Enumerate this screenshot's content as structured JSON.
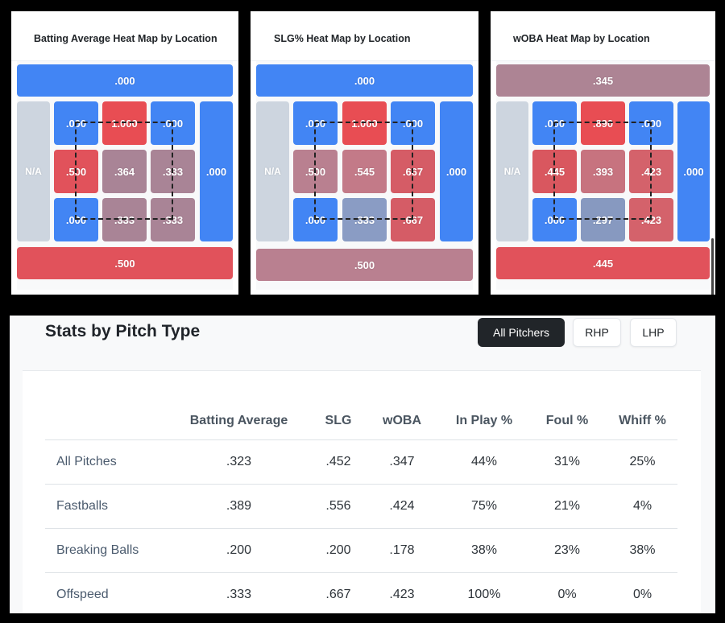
{
  "heatmaps": [
    {
      "title": "Batting Average Heat Map by Location",
      "top": ".000",
      "left": "N/A",
      "right": ".000",
      "bottom": ".500",
      "grid": [
        ".000",
        "1.000",
        ".000",
        ".500",
        ".364",
        ".333",
        ".000",
        ".333",
        ".333"
      ],
      "colors": {
        "top": "#4285f4",
        "left": "#cdd5df",
        "right": "#4285f4",
        "bottom": "#e1525b",
        "grid": [
          "#4285f4",
          "#e84d53",
          "#4285f4",
          "#e1525b",
          "#a98496",
          "#a98496",
          "#4285f4",
          "#a98496",
          "#a98496"
        ]
      }
    },
    {
      "title": "SLG% Heat Map by Location",
      "top": ".000",
      "left": "N/A",
      "right": ".000",
      "bottom": ".500",
      "grid": [
        ".000",
        "1.000",
        ".000",
        ".500",
        ".545",
        ".667",
        ".000",
        ".333",
        ".667"
      ],
      "colors": {
        "top": "#4285f4",
        "left": "#cdd5df",
        "right": "#4285f4",
        "bottom": "#b98090",
        "grid": [
          "#4285f4",
          "#e84d53",
          "#4285f4",
          "#b98090",
          "#c37a88",
          "#d55c66",
          "#4285f4",
          "#8a9cc4",
          "#d55c66"
        ]
      }
    },
    {
      "title": "wOBA Heat Map by Location",
      "top": ".345",
      "left": "N/A",
      "right": ".000",
      "bottom": ".445",
      "grid": [
        ".000",
        ".890",
        ".000",
        ".445",
        ".393",
        ".423",
        ".000",
        ".297",
        ".423"
      ],
      "colors": {
        "top": "#ad8494",
        "left": "#cdd5df",
        "right": "#4285f4",
        "bottom": "#e1525b",
        "grid": [
          "#4285f4",
          "#e84d53",
          "#4285f4",
          "#d9575f",
          "#c7737f",
          "#d4626b",
          "#4285f4",
          "#8799c0",
          "#d4626b"
        ]
      }
    }
  ],
  "stats": {
    "title": "Stats by Pitch Type",
    "filters": [
      "All Pitchers",
      "RHP",
      "LHP"
    ],
    "active_filter": "All Pitchers",
    "columns": [
      "",
      "Batting Average",
      "SLG",
      "wOBA",
      "In Play %",
      "Foul %",
      "Whiff %"
    ],
    "rows": [
      [
        "All Pitches",
        ".323",
        ".452",
        ".347",
        "44%",
        "31%",
        "25%"
      ],
      [
        "Fastballs",
        ".389",
        ".556",
        ".424",
        "75%",
        "21%",
        "4%"
      ],
      [
        "Breaking Balls",
        ".200",
        ".200",
        ".178",
        "38%",
        "23%",
        "38%"
      ],
      [
        "Offspeed",
        ".333",
        ".667",
        ".423",
        "100%",
        "0%",
        "0%"
      ]
    ]
  }
}
